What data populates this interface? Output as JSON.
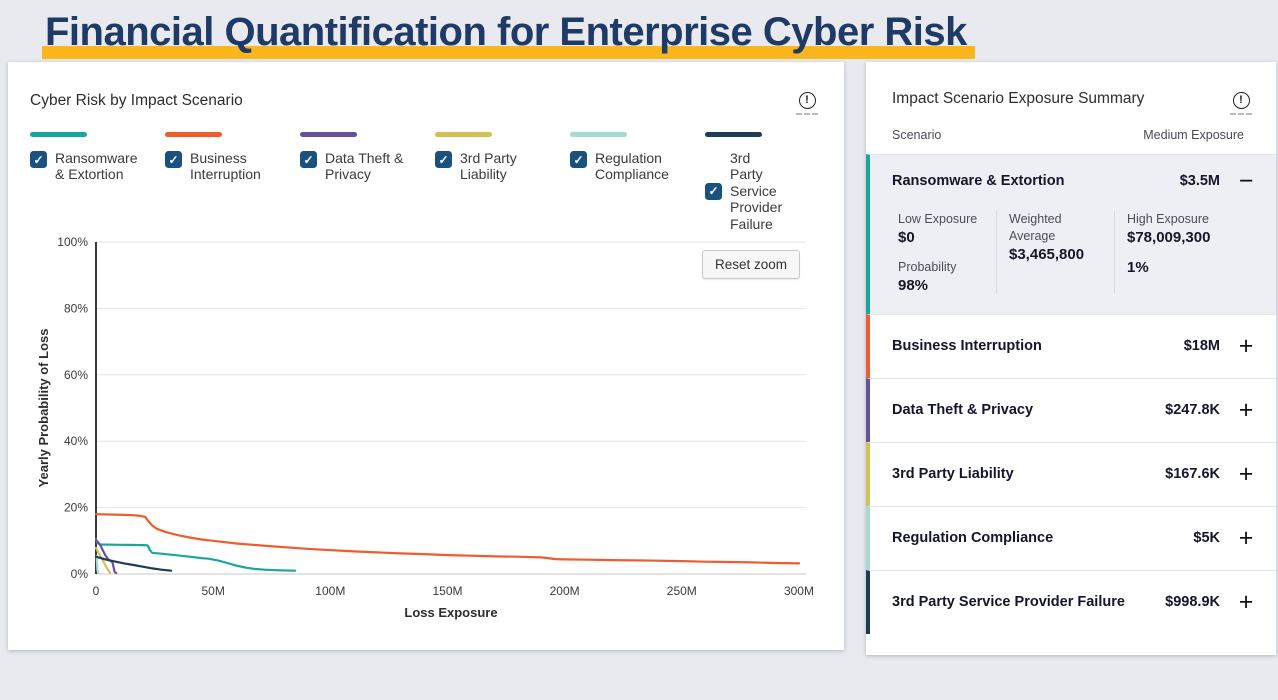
{
  "page": {
    "title": "Financial Quantification for Enterprise Cyber Risk",
    "accent_gold": "#fcb61d",
    "title_color": "#1f3a64"
  },
  "left_panel": {
    "title": "Cyber Risk by Impact Scenario",
    "info_icon": "circled-exclamation",
    "reset_zoom_label": "Reset zoom",
    "legend": [
      {
        "label": "Ransomware & Extortion",
        "color": "#18a79d",
        "checked": true
      },
      {
        "label": "Business Interruption",
        "color": "#ee5c30",
        "checked": true
      },
      {
        "label": "Data Theft & Privacy",
        "color": "#67519e",
        "checked": true
      },
      {
        "label": "3rd Party Liability",
        "color": "#d3c251",
        "checked": true
      },
      {
        "label": "Regulation Compliance",
        "color": "#a8d8d2",
        "checked": true
      },
      {
        "label": "3rd Party Service Provider Failure",
        "color": "#1d3d57",
        "checked": true
      }
    ]
  },
  "chart_data": {
    "type": "line",
    "title": "Cyber Risk by Impact Scenario",
    "xlabel": "Loss Exposure",
    "ylabel": "Yearly Probability of Loss",
    "x_unit": "millions USD",
    "xlim": [
      0,
      303
    ],
    "ylim": [
      0,
      100
    ],
    "grid": "horizontal",
    "x_ticks": [
      {
        "value": 0,
        "label": "0"
      },
      {
        "value": 50,
        "label": "50M"
      },
      {
        "value": 100,
        "label": "100M"
      },
      {
        "value": 150,
        "label": "150M"
      },
      {
        "value": 200,
        "label": "200M"
      },
      {
        "value": 250,
        "label": "250M"
      },
      {
        "value": 300,
        "label": "300M"
      }
    ],
    "y_ticks": [
      {
        "value": 0,
        "label": "0%"
      },
      {
        "value": 20,
        "label": "20%"
      },
      {
        "value": 40,
        "label": "40%"
      },
      {
        "value": 60,
        "label": "60%"
      },
      {
        "value": 80,
        "label": "80%"
      },
      {
        "value": 100,
        "label": "100%"
      }
    ],
    "series": [
      {
        "name": "Business Interruption",
        "color": "#ee5c30",
        "points": [
          [
            0,
            18
          ],
          [
            8,
            17.9
          ],
          [
            16,
            17.7
          ],
          [
            19,
            17.5
          ],
          [
            21,
            17.2
          ],
          [
            22,
            16.2
          ],
          [
            24,
            14.6
          ],
          [
            26,
            13.6
          ],
          [
            30,
            12.6
          ],
          [
            35,
            11.7
          ],
          [
            40,
            11
          ],
          [
            45,
            10.4
          ],
          [
            50,
            10
          ],
          [
            60,
            9.2
          ],
          [
            70,
            8.6
          ],
          [
            80,
            8.1
          ],
          [
            90,
            7.6
          ],
          [
            100,
            7.2
          ],
          [
            110,
            6.8
          ],
          [
            120,
            6.5
          ],
          [
            130,
            6.2
          ],
          [
            140,
            6
          ],
          [
            150,
            5.7
          ],
          [
            160,
            5.5
          ],
          [
            170,
            5.3
          ],
          [
            180,
            5.2
          ],
          [
            190,
            5
          ],
          [
            193,
            4.8
          ],
          [
            196,
            4.5
          ],
          [
            200,
            4.4
          ],
          [
            210,
            4.3
          ],
          [
            220,
            4.2
          ],
          [
            230,
            4.1
          ],
          [
            240,
            4
          ],
          [
            250,
            3.9
          ],
          [
            260,
            3.7
          ],
          [
            270,
            3.6
          ],
          [
            280,
            3.5
          ],
          [
            290,
            3.3
          ],
          [
            300,
            3.2
          ]
        ]
      },
      {
        "name": "Ransomware & Extortion",
        "color": "#18a79d",
        "points": [
          [
            0,
            10.5
          ],
          [
            0.6,
            9.3
          ],
          [
            2,
            8.9
          ],
          [
            10,
            8.8
          ],
          [
            20,
            8.7
          ],
          [
            22,
            8.6
          ],
          [
            23,
            7.2
          ],
          [
            24,
            6.4
          ],
          [
            28,
            6.1
          ],
          [
            32,
            5.8
          ],
          [
            36,
            5.5
          ],
          [
            40,
            5.2
          ],
          [
            45,
            4.8
          ],
          [
            48,
            4.6
          ],
          [
            52,
            4.1
          ],
          [
            56,
            3.3
          ],
          [
            60,
            2.5
          ],
          [
            64,
            1.9
          ],
          [
            68,
            1.5
          ],
          [
            72,
            1.3
          ],
          [
            78,
            1.1
          ],
          [
            85,
            1
          ]
        ]
      },
      {
        "name": "Data Theft & Privacy",
        "color": "#67519e",
        "points": [
          [
            0,
            10.2
          ],
          [
            1,
            9.5
          ],
          [
            2,
            8.5
          ],
          [
            3,
            7
          ],
          [
            4,
            5.6
          ],
          [
            5,
            4.6
          ],
          [
            6,
            4
          ],
          [
            7,
            3.6
          ],
          [
            7.5,
            2
          ],
          [
            8,
            0.6
          ],
          [
            8.6,
            0.3
          ]
        ]
      },
      {
        "name": "3rd Party Liability",
        "color": "#d3c251",
        "points": [
          [
            0,
            7.8
          ],
          [
            1,
            6.5
          ],
          [
            2,
            5.2
          ],
          [
            3,
            4
          ],
          [
            4,
            2.6
          ],
          [
            5,
            1.4
          ],
          [
            6,
            0.4
          ]
        ]
      },
      {
        "name": "Regulation Compliance",
        "color": "#a8d8d2",
        "points": [
          [
            0.3,
            5.4
          ],
          [
            0.6,
            1.2
          ],
          [
            1,
            0.2
          ]
        ]
      },
      {
        "name": "3rd Party Service Provider Failure",
        "color": "#1d3d57",
        "points": [
          [
            0,
            5.2
          ],
          [
            4,
            4.4
          ],
          [
            8,
            3.8
          ],
          [
            12,
            3.2
          ],
          [
            16,
            2.7
          ],
          [
            20,
            2.2
          ],
          [
            24,
            1.7
          ],
          [
            28,
            1.3
          ],
          [
            32,
            1
          ]
        ]
      }
    ]
  },
  "right_panel": {
    "title": "Impact Scenario Exposure Summary",
    "info_icon": "circled-exclamation",
    "columns": {
      "scenario": "Scenario",
      "medium": "Medium Exposure"
    },
    "rows": [
      {
        "name": "Ransomware & Extortion",
        "medium": "$3.5M",
        "color": "#18a79d",
        "expanded": true,
        "details": {
          "low_label": "Low Exposure",
          "low_value": "$0",
          "prob_label": "Probability",
          "prob_value": "98%",
          "wavg_label": "Weighted Average",
          "wavg_value": "$3,465,800",
          "high_label": "High Exposure",
          "high_value": "$78,009,300",
          "high_prob": "1%"
        }
      },
      {
        "name": "Business Interruption",
        "medium": "$18M",
        "color": "#ee5c30",
        "expanded": false
      },
      {
        "name": "Data Theft & Privacy",
        "medium": "$247.8K",
        "color": "#67519e",
        "expanded": false
      },
      {
        "name": "3rd Party Liability",
        "medium": "$167.6K",
        "color": "#d3c251",
        "expanded": false
      },
      {
        "name": "Regulation Compliance",
        "medium": "$5K",
        "color": "#a8d8d2",
        "expanded": false
      },
      {
        "name": "3rd Party Service Provider Failure",
        "medium": "$998.9K",
        "color": "#1d3d57",
        "expanded": false
      }
    ],
    "toggle_icons": {
      "expanded": "−",
      "collapsed": "+"
    }
  }
}
